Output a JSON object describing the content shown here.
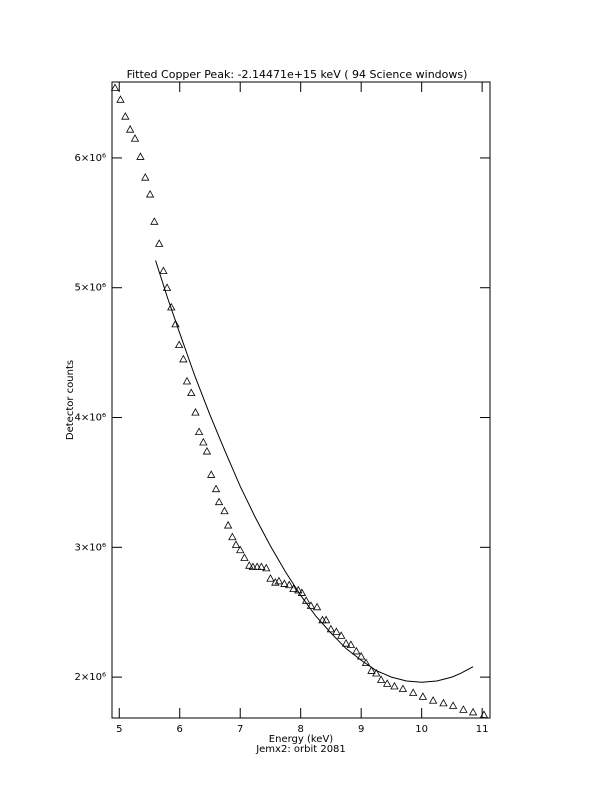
{
  "chart_data": {
    "type": "scatter",
    "title": "Fitted Copper Peak:  -2.14471e+15 keV (      94 Science windows)",
    "x_label": "Energy (keV)",
    "subtitle": "Jemx2: orbit 2081",
    "y_label": "Detector counts",
    "marker": "triangle",
    "color": "#000000",
    "x": [
      4.93,
      5.02,
      5.1,
      5.18,
      5.26,
      5.35,
      5.43,
      5.51,
      5.58,
      5.66,
      5.73,
      5.79,
      5.86,
      5.93,
      5.99,
      6.06,
      6.12,
      6.19,
      6.26,
      6.32,
      6.39,
      6.45,
      6.52,
      6.6,
      6.65,
      6.74,
      6.8,
      6.87,
      6.93,
      7.0,
      7.07,
      7.15,
      7.21,
      7.28,
      7.35,
      7.43,
      7.5,
      7.58,
      7.64,
      7.73,
      7.81,
      7.88,
      7.96,
      8.02,
      8.09,
      8.17,
      8.27,
      8.36,
      8.42,
      8.5,
      8.59,
      8.67,
      8.75,
      8.83,
      8.92,
      9.0,
      9.08,
      9.17,
      9.25,
      9.33,
      9.43,
      9.55,
      9.69,
      9.86,
      10.02,
      10.19,
      10.36,
      10.52,
      10.69,
      10.85,
      11.03
    ],
    "values": [
      6540000,
      6450000,
      6320000,
      6220000,
      6150000,
      6010000,
      5850000,
      5720000,
      5510000,
      5340000,
      5130000,
      5000000,
      4850000,
      4720000,
      4560000,
      4450000,
      4280000,
      4190000,
      4040000,
      3890000,
      3810000,
      3740000,
      3560000,
      3450000,
      3350000,
      3280000,
      3170000,
      3080000,
      3020000,
      2980000,
      2920000,
      2860000,
      2850000,
      2850000,
      2850000,
      2840000,
      2760000,
      2730000,
      2740000,
      2720000,
      2710000,
      2680000,
      2670000,
      2650000,
      2590000,
      2550000,
      2540000,
      2440000,
      2440000,
      2370000,
      2350000,
      2320000,
      2260000,
      2250000,
      2200000,
      2160000,
      2110000,
      2050000,
      2030000,
      1980000,
      1950000,
      1930000,
      1910000,
      1880000,
      1850000,
      1820000,
      1800000,
      1780000,
      1750000,
      1730000,
      1710000
    ],
    "fit": {
      "color": "#000000",
      "x": [
        5.6,
        5.8,
        6.0,
        6.25,
        6.5,
        6.75,
        7.0,
        7.25,
        7.5,
        7.75,
        8.0,
        8.25,
        8.5,
        8.75,
        9.0,
        9.25,
        9.5,
        9.75,
        10.0,
        10.25,
        10.5,
        10.65,
        10.85
      ],
      "values": [
        5210000,
        4920000,
        4650000,
        4320000,
        4020000,
        3740000,
        3470000,
        3230000,
        3010000,
        2810000,
        2630000,
        2470000,
        2340000,
        2220000,
        2130000,
        2050000,
        2000000,
        1970000,
        1960000,
        1970000,
        2000000,
        2030000,
        2080000
      ]
    },
    "xlim": [
      4.88,
      11.13
    ],
    "ylim": [
      1685000,
      6585000
    ],
    "xticks": [
      5,
      6,
      7,
      8,
      9,
      10,
      11
    ],
    "yticks": [
      {
        "value": 2000000,
        "label": "2×10⁶"
      },
      {
        "value": 3000000,
        "label": "3×10⁶"
      },
      {
        "value": 4000000,
        "label": "4×10⁶"
      },
      {
        "value": 5000000,
        "label": "5×10⁶"
      },
      {
        "value": 6000000,
        "label": "6×10⁶"
      }
    ]
  }
}
